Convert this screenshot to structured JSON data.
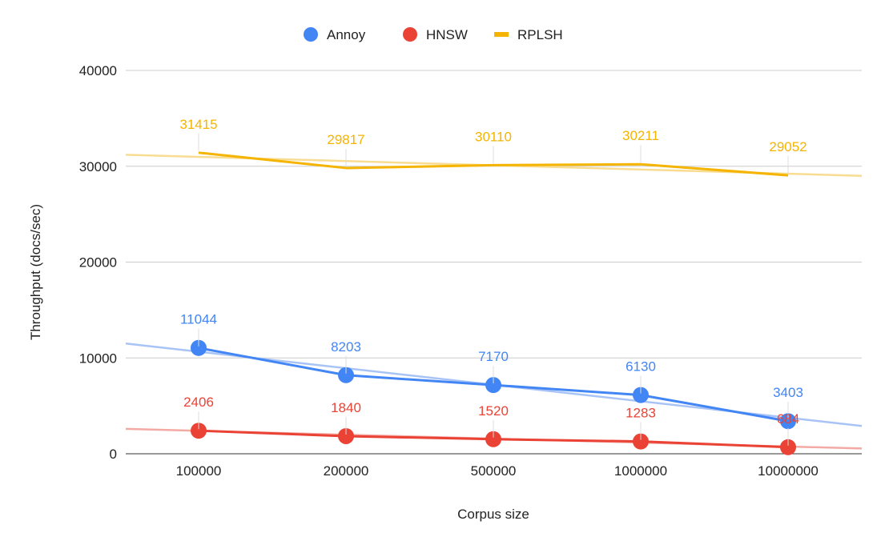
{
  "chart_data": {
    "type": "line",
    "title": "",
    "xlabel": "Corpus size",
    "ylabel": "Throughput (docs/sec)",
    "categories": [
      "100000",
      "200000",
      "500000",
      "1000000",
      "10000000"
    ],
    "ylim": [
      0,
      40000
    ],
    "yticks": [
      0,
      10000,
      20000,
      30000,
      40000
    ],
    "grid": true,
    "legend_position": "top",
    "series": [
      {
        "name": "Annoy",
        "color": "#4285f4",
        "trend_color": "#a8c4f6",
        "marker": "circle",
        "legend_marker": "circle",
        "values": [
          11044,
          8203,
          7170,
          6130,
          3403
        ],
        "trend": [
          11500,
          2900
        ]
      },
      {
        "name": "HNSW",
        "color": "#ea4335",
        "trend_color": "#f3aaa4",
        "marker": "circle",
        "legend_marker": "circle",
        "values": [
          2406,
          1840,
          1520,
          1283,
          684
        ],
        "trend": [
          2600,
          550
        ]
      },
      {
        "name": "RPLSH",
        "color": "#f4b400",
        "trend_color": "#f8dc92",
        "marker": "none",
        "legend_marker": "line",
        "values": [
          31415,
          29817,
          30110,
          30211,
          29052
        ],
        "trend": [
          31200,
          29000
        ]
      }
    ]
  }
}
